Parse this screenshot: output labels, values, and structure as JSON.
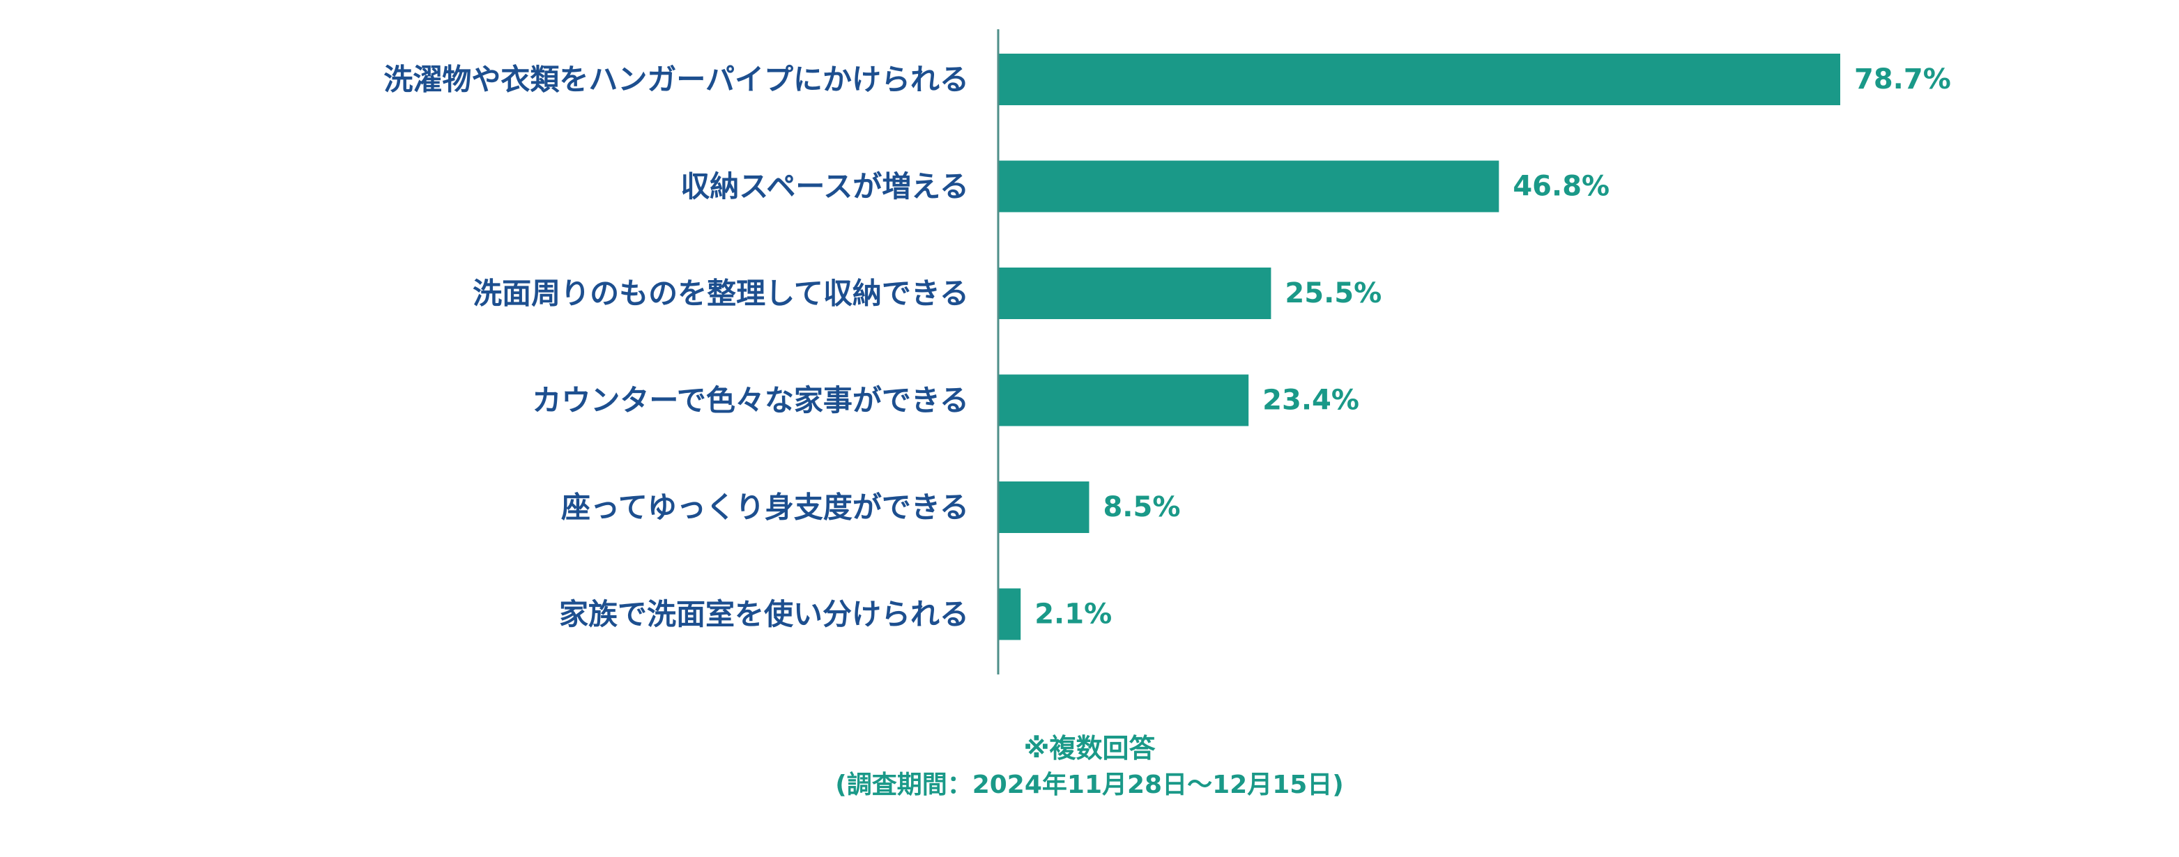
{
  "chart_data": {
    "type": "bar",
    "orientation": "horizontal",
    "categories": [
      "洗濯物や衣類をハンガーパイプにかけられる",
      "収納スペースが増える",
      "洗面周りのものを整理して収納できる",
      "カウンターで色々な家事ができる",
      "座ってゆっくり身支度ができる",
      "家族で洗面室を使い分けられる"
    ],
    "values": [
      78.7,
      46.8,
      25.5,
      23.4,
      8.5,
      2.1
    ],
    "value_labels": [
      "78.7%",
      "46.8%",
      "25.5%",
      "23.4%",
      "8.5%",
      "2.1%"
    ],
    "title": "",
    "xlabel": "",
    "ylabel": "",
    "xlim": [
      0,
      100
    ],
    "grid": false,
    "legend": "none",
    "bar_color": "#1a9988",
    "category_label_color": "#1d4f8f",
    "value_label_color": "#1a9988",
    "axis_color": "#4e8f88",
    "annotations": [
      "※複数回答",
      "(調査期間：2024年11月28日～12月15日)"
    ]
  }
}
